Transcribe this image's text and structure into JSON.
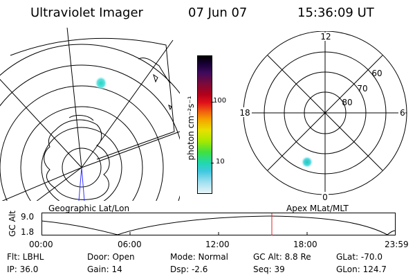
{
  "header": {
    "instrument": "Ultraviolet Imager",
    "date": "07 Jun 07",
    "time": "15:36:09 UT"
  },
  "left_map": {
    "label": "Geographic Lat/Lon"
  },
  "colorbar": {
    "unit_label": "photon cm⁻²s⁻¹",
    "ticks": [
      "100",
      "10"
    ],
    "colors": [
      "#000000",
      "#1a0038",
      "#3d0a5c",
      "#7a0a3a",
      "#b2001a",
      "#e0101a",
      "#f05a10",
      "#f5a000",
      "#e8e000",
      "#a8e800",
      "#40e040",
      "#20d8b0",
      "#40c8e0",
      "#a0e0f0",
      "#e8f4f8"
    ]
  },
  "right_polar": {
    "label": "Apex MLat/MLT",
    "mlt_labels": [
      "12",
      "18",
      "6",
      "0"
    ],
    "lat_labels": [
      "60",
      "70",
      "80"
    ]
  },
  "timeline": {
    "y_axis_label": "GC Alt",
    "y_ticks": [
      "9.0",
      "1.8"
    ],
    "x_ticks": [
      "00:00",
      "06:00",
      "12:00",
      "18:00",
      "23:59"
    ],
    "current_time_fraction": 0.65
  },
  "info": {
    "flt": "Flt: LBHL",
    "ip": "IP: 36.0",
    "door": "Door: Open",
    "gain": "Gain: 14",
    "mode": "Mode: Normal",
    "dsp": "Dsp:    -2.6",
    "gc_alt": "GC Alt: 8.8 Re",
    "seq": "Seq: 39",
    "glat": "GLat: -70.0",
    "glon": "GLon: 124.7"
  }
}
